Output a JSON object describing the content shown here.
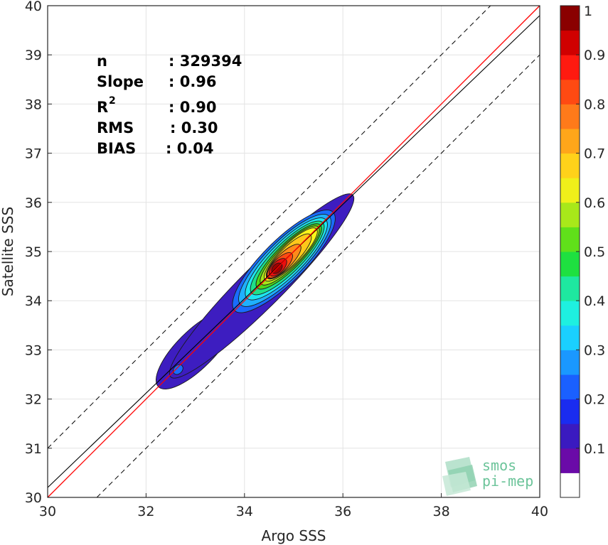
{
  "chart_data": {
    "type": "density-contour",
    "xlabel": "Argo SSS",
    "ylabel": "Satellite SSS",
    "xlim": [
      30,
      40
    ],
    "ylim": [
      30,
      40
    ],
    "xticks": [
      "30",
      "32",
      "34",
      "36",
      "38",
      "40"
    ],
    "yticks": [
      "30",
      "31",
      "32",
      "33",
      "34",
      "35",
      "36",
      "37",
      "38",
      "39",
      "40"
    ],
    "grid": true,
    "stats": [
      {
        "label": "n",
        "value": ": 329394"
      },
      {
        "label": "Slope",
        "value": ": 0.96"
      },
      {
        "label": "R",
        "sup": "2",
        "value": ": 0.90"
      },
      {
        "label": "RMS",
        "value": ": 0.30"
      },
      {
        "label": "BIAS",
        "value": ": 0.04"
      }
    ],
    "reference_lines": {
      "identity": {
        "slope": 1,
        "intercept": 0,
        "color": "#ff0000"
      },
      "regression": {
        "slope": 0.96,
        "intercept": 1.4,
        "color": "#000000"
      },
      "bounds": {
        "offset": 1.0,
        "style": "dashed",
        "color": "#000000"
      }
    },
    "density_levels": [
      {
        "level": 0.05,
        "center": [
          34.35,
          34.3
        ],
        "sx": 1.85,
        "sy": 0.3,
        "color": "#3d1dc0"
      },
      {
        "level": 0.15,
        "center": [
          34.8,
          34.8
        ],
        "sx": 1.0,
        "sy": 0.3,
        "color": "#1a6cff"
      },
      {
        "level": 0.25,
        "center": [
          34.82,
          34.82
        ],
        "sx": 0.9,
        "sy": 0.27,
        "color": "#1fb0ff"
      },
      {
        "level": 0.35,
        "center": [
          34.85,
          34.85
        ],
        "sx": 0.8,
        "sy": 0.24,
        "color": "#1ee6f0"
      },
      {
        "level": 0.45,
        "center": [
          34.87,
          34.87
        ],
        "sx": 0.72,
        "sy": 0.21,
        "color": "#1fe08a"
      },
      {
        "level": 0.55,
        "center": [
          34.9,
          34.9
        ],
        "sx": 0.64,
        "sy": 0.18,
        "color": "#4fd81a"
      },
      {
        "level": 0.6,
        "center": [
          34.92,
          34.92
        ],
        "sx": 0.58,
        "sy": 0.16,
        "color": "#a6e41a"
      },
      {
        "level": 0.65,
        "center": [
          34.94,
          34.94
        ],
        "sx": 0.52,
        "sy": 0.145,
        "color": "#fcf51a"
      },
      {
        "level": 0.7,
        "center": [
          34.9,
          34.9
        ],
        "sx": 0.44,
        "sy": 0.13,
        "color": "#ffc81a"
      },
      {
        "level": 0.8,
        "center": [
          34.8,
          34.8
        ],
        "sx": 0.33,
        "sy": 0.11,
        "color": "#ff8a1a"
      },
      {
        "level": 0.85,
        "center": [
          34.72,
          34.72
        ],
        "sx": 0.24,
        "sy": 0.095,
        "color": "#ff4a12"
      },
      {
        "level": 0.9,
        "center": [
          34.68,
          34.68
        ],
        "sx": 0.16,
        "sy": 0.08,
        "color": "#e81010"
      },
      {
        "level": 1.0,
        "center": [
          34.66,
          34.66
        ],
        "sx": 0.09,
        "sy": 0.06,
        "color": "#a00000"
      }
    ],
    "secondary_blob": {
      "center": [
        32.65,
        32.6
      ],
      "sx": 0.08,
      "sy": 0.06,
      "color": "#1a6cff"
    },
    "colorbar": {
      "ticks": [
        "0.1",
        "0.2",
        "0.3",
        "0.4",
        "0.5",
        "0.6",
        "0.7",
        "0.8",
        "0.9",
        "1"
      ],
      "tick_values": [
        0.1,
        0.2,
        0.3,
        0.4,
        0.5,
        0.6,
        0.7,
        0.8,
        0.9,
        1.0
      ],
      "range": [
        0.0,
        1.0
      ],
      "colors": [
        "#ffffff",
        "#6a0aa8",
        "#3a1ac0",
        "#1a2cf0",
        "#1a60ff",
        "#1a98ff",
        "#1ad0ff",
        "#1ef0e0",
        "#1ee8a0",
        "#1ee040",
        "#60e01a",
        "#a8e81a",
        "#f0f01a",
        "#ffd21a",
        "#ffa61a",
        "#ff7a1a",
        "#ff4a12",
        "#ff1a10",
        "#d00000",
        "#8a0000"
      ]
    }
  },
  "logo": {
    "line1": "smos",
    "line2": "pi-mep"
  }
}
